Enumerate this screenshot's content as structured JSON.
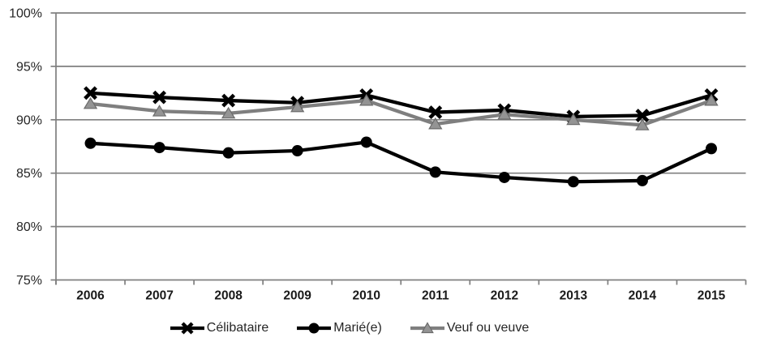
{
  "chart_data": {
    "type": "line",
    "title": "",
    "xlabel": "",
    "ylabel": "",
    "x": [
      "2006",
      "2007",
      "2008",
      "2009",
      "2010",
      "2011",
      "2012",
      "2013",
      "2014",
      "2015"
    ],
    "series": [
      {
        "name": "Célibataire",
        "marker": "x",
        "line_color": "#000000",
        "marker_color": "#000000",
        "values": [
          92.5,
          92.1,
          91.8,
          91.6,
          92.3,
          90.7,
          90.9,
          90.3,
          90.4,
          92.3
        ]
      },
      {
        "name": "Marié(e)",
        "marker": "circle",
        "line_color": "#000000",
        "marker_color": "#000000",
        "values": [
          87.8,
          87.4,
          86.9,
          87.1,
          87.9,
          85.1,
          84.6,
          84.2,
          84.3,
          87.3
        ]
      },
      {
        "name": "Veuf ou veuve",
        "marker": "triangle",
        "line_color": "#7F7F7F",
        "marker_color": "#949494",
        "marker_edge": "#6B6B6B",
        "values": [
          91.5,
          90.8,
          90.6,
          91.2,
          91.8,
          89.6,
          90.5,
          90.0,
          89.5,
          91.8
        ]
      }
    ],
    "ylim": [
      75,
      100
    ],
    "ytick_step": 5,
    "ytick_labels": [
      "75%",
      "80%",
      "85%",
      "90%",
      "95%",
      "100%"
    ],
    "grid": "horizontal",
    "legend_position": "bottom"
  },
  "style": {
    "grid_color": "#7F7F7F",
    "axis_color": "#7F7F7F",
    "ytick_label_color": "#262626",
    "xtick_label_color": "#1A1A1A",
    "background": "#FFFFFF"
  }
}
